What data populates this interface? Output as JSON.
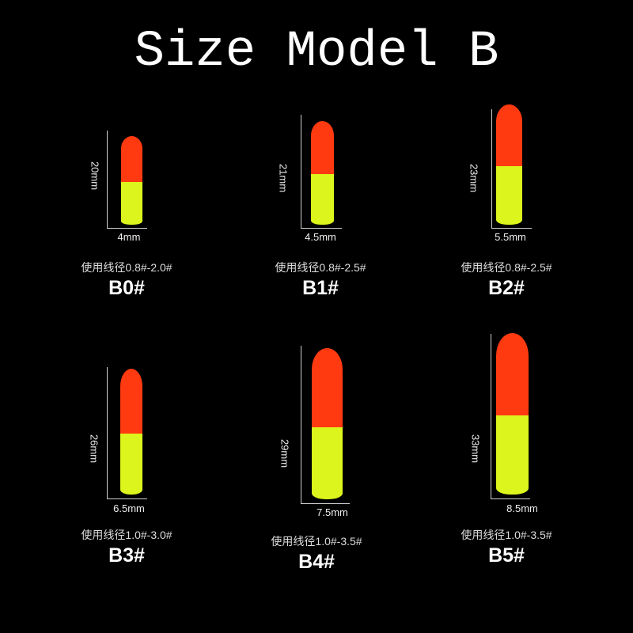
{
  "title": "Size Model B",
  "colors": {
    "background": "#000000",
    "float_top": "#ff3a10",
    "float_bottom": "#dcf51c"
  },
  "models": [
    {
      "name": "B0#",
      "height": "20mm",
      "width": "4mm",
      "line": "使用线径0.8#-2.0#"
    },
    {
      "name": "B1#",
      "height": "21mm",
      "width": "4.5mm",
      "line": "使用线径0.8#-2.5#"
    },
    {
      "name": "B2#",
      "height": "23mm",
      "width": "5.5mm",
      "line": "使用线径0.8#-2.5#"
    },
    {
      "name": "B3#",
      "height": "26mm",
      "width": "6.5mm",
      "line": "使用线径1.0#-3.0#"
    },
    {
      "name": "B4#",
      "height": "29mm",
      "width": "7.5mm",
      "line": "使用线径1.0#-3.5#"
    },
    {
      "name": "B5#",
      "height": "33mm",
      "width": "8.5mm",
      "line": "使用线径1.0#-3.5#"
    }
  ]
}
